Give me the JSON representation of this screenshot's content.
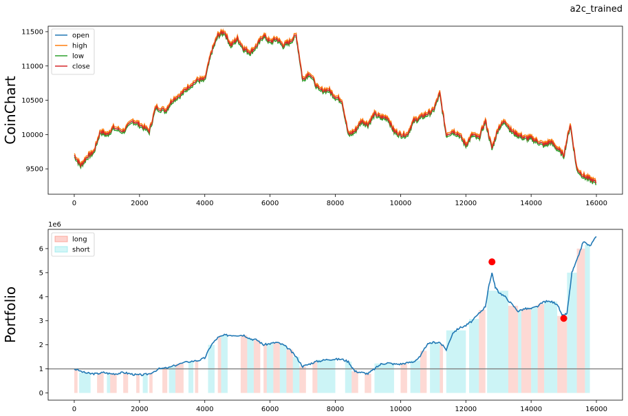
{
  "suptitle": "a2c_trained",
  "chart_data": [
    {
      "type": "line",
      "ylabel": "CoinChart",
      "xlim": [
        -800,
        16800
      ],
      "ylim": [
        9130,
        11580
      ],
      "xticks": [
        0,
        2000,
        4000,
        6000,
        8000,
        10000,
        12000,
        14000,
        16000
      ],
      "yticks": [
        9500,
        10000,
        10500,
        11000,
        11500
      ],
      "legend_position": "upper-left",
      "series": [
        {
          "name": "open",
          "color": "#1f77b4"
        },
        {
          "name": "high",
          "color": "#ff7f0e"
        },
        {
          "name": "low",
          "color": "#2ca02c"
        },
        {
          "name": "close",
          "color": "#d62728"
        }
      ],
      "x": [
        0,
        200,
        400,
        600,
        800,
        1000,
        1200,
        1500,
        1800,
        2000,
        2300,
        2500,
        2800,
        3000,
        3300,
        3500,
        3800,
        4000,
        4200,
        4400,
        4600,
        4800,
        5000,
        5200,
        5400,
        5600,
        5800,
        6000,
        6200,
        6400,
        6600,
        6800,
        7000,
        7200,
        7500,
        7800,
        8000,
        8200,
        8400,
        8600,
        8800,
        9000,
        9200,
        9400,
        9600,
        9800,
        10000,
        10200,
        10400,
        10600,
        10800,
        11000,
        11200,
        11400,
        11600,
        11800,
        12000,
        12200,
        12400,
        12600,
        12800,
        13000,
        13200,
        13400,
        13600,
        13800,
        14000,
        14200,
        14400,
        14600,
        14800,
        15000,
        15200,
        15400,
        15600,
        15800,
        16000
      ],
      "close": [
        9700,
        9550,
        9680,
        9750,
        10050,
        10000,
        10100,
        10050,
        10200,
        10150,
        10050,
        10400,
        10350,
        10500,
        10600,
        10700,
        10800,
        10800,
        11200,
        11450,
        11500,
        11300,
        11400,
        11250,
        11200,
        11300,
        11450,
        11350,
        11400,
        11300,
        11350,
        11450,
        10800,
        10900,
        10650,
        10650,
        10550,
        10500,
        10000,
        10050,
        10200,
        10150,
        10300,
        10250,
        10250,
        10050,
        10000,
        10000,
        10200,
        10250,
        10300,
        10350,
        10600,
        10000,
        10050,
        10000,
        9850,
        10000,
        9950,
        10200,
        9800,
        10100,
        10200,
        10050,
        10000,
        9950,
        9950,
        9900,
        9850,
        9900,
        9800,
        9700,
        10150,
        9500,
        9400,
        9350,
        9300
      ]
    },
    {
      "type": "line",
      "ylabel": "Portfolio",
      "offset_label": "1e6",
      "xlim": [
        -800,
        16800
      ],
      "ylim": [
        -0.3,
        6.8
      ],
      "xticks": [
        0,
        2000,
        4000,
        6000,
        8000,
        10000,
        12000,
        14000,
        16000
      ],
      "yticks": [
        0,
        1,
        2,
        3,
        4,
        5,
        6
      ],
      "hline": 1,
      "legend_position": "upper-left",
      "regions": [
        {
          "name": "long",
          "color": "#fa8072"
        },
        {
          "name": "short",
          "color": "#7fe4e8"
        }
      ],
      "x": [
        0,
        300,
        500,
        700,
        900,
        1100,
        1300,
        1500,
        1700,
        1900,
        2100,
        2300,
        2600,
        2900,
        3200,
        3500,
        3800,
        4000,
        4200,
        4400,
        4600,
        4800,
        5000,
        5200,
        5400,
        5600,
        5800,
        6000,
        6200,
        6400,
        6600,
        6800,
        7000,
        7200,
        7400,
        7600,
        7800,
        8000,
        8200,
        8400,
        8600,
        8800,
        9000,
        9200,
        9400,
        9600,
        9800,
        10000,
        10200,
        10400,
        10600,
        10800,
        11000,
        11200,
        11400,
        11600,
        11800,
        12000,
        12200,
        12400,
        12600,
        12700,
        12800,
        12900,
        13000,
        13200,
        13400,
        13600,
        13800,
        14000,
        14200,
        14400,
        14600,
        14800,
        14950,
        15100,
        15250,
        15400,
        15600,
        15800,
        16000
      ],
      "y": [
        1.0,
        0.85,
        0.8,
        0.8,
        0.85,
        0.8,
        0.8,
        0.85,
        0.8,
        0.75,
        0.75,
        0.8,
        1.0,
        1.05,
        1.2,
        1.3,
        1.35,
        1.45,
        2.0,
        2.3,
        2.4,
        2.4,
        2.4,
        2.4,
        2.25,
        2.2,
        2.0,
        2.05,
        2.1,
        2.0,
        1.8,
        1.5,
        1.1,
        1.2,
        1.3,
        1.35,
        1.4,
        1.4,
        1.4,
        1.3,
        0.9,
        0.85,
        0.8,
        1.0,
        1.2,
        1.25,
        1.2,
        1.2,
        1.25,
        1.3,
        1.5,
        2.0,
        2.1,
        2.1,
        1.8,
        2.5,
        2.7,
        2.8,
        3.0,
        3.3,
        3.6,
        4.4,
        5.0,
        4.4,
        4.2,
        4.0,
        3.7,
        3.4,
        3.5,
        3.5,
        3.6,
        3.8,
        3.8,
        3.7,
        3.2,
        3.3,
        5.0,
        5.5,
        6.3,
        6.1,
        6.5
      ],
      "markers": [
        {
          "x": 12800,
          "y": 5.45
        },
        {
          "x": 15000,
          "y": 3.1
        }
      ],
      "long_spans": [
        [
          0,
          100
        ],
        [
          700,
          900
        ],
        [
          1100,
          1300
        ],
        [
          1500,
          1650
        ],
        [
          1900,
          2000
        ],
        [
          2300,
          2400
        ],
        [
          2700,
          2850
        ],
        [
          3100,
          3350
        ],
        [
          3700,
          3800
        ],
        [
          4400,
          4500
        ],
        [
          5100,
          5300
        ],
        [
          5500,
          5700
        ],
        [
          5800,
          5900
        ],
        [
          6100,
          6300
        ],
        [
          6500,
          6700
        ],
        [
          6900,
          7100
        ],
        [
          7300,
          7450
        ],
        [
          8500,
          8700
        ],
        [
          8900,
          9100
        ],
        [
          10000,
          10200
        ],
        [
          10600,
          10800
        ],
        [
          11200,
          11300
        ],
        [
          12400,
          12600
        ],
        [
          13300,
          13600
        ],
        [
          13700,
          14000
        ],
        [
          14200,
          14400
        ],
        [
          14800,
          15100
        ],
        [
          15400,
          15650
        ]
      ],
      "short_spans": [
        [
          150,
          500
        ],
        [
          1000,
          1100
        ],
        [
          2100,
          2250
        ],
        [
          2900,
          3100
        ],
        [
          3500,
          3650
        ],
        [
          4100,
          4300
        ],
        [
          4500,
          4700
        ],
        [
          5300,
          5500
        ],
        [
          5900,
          6100
        ],
        [
          6300,
          6500
        ],
        [
          6700,
          6900
        ],
        [
          7450,
          8000
        ],
        [
          8300,
          8500
        ],
        [
          9200,
          9800
        ],
        [
          10300,
          10600
        ],
        [
          10900,
          11200
        ],
        [
          11400,
          12000
        ],
        [
          12100,
          12400
        ],
        [
          12650,
          13300
        ],
        [
          13600,
          13700
        ],
        [
          14000,
          14200
        ],
        [
          14400,
          14800
        ],
        [
          15100,
          15400
        ],
        [
          15650,
          15800
        ]
      ]
    }
  ]
}
